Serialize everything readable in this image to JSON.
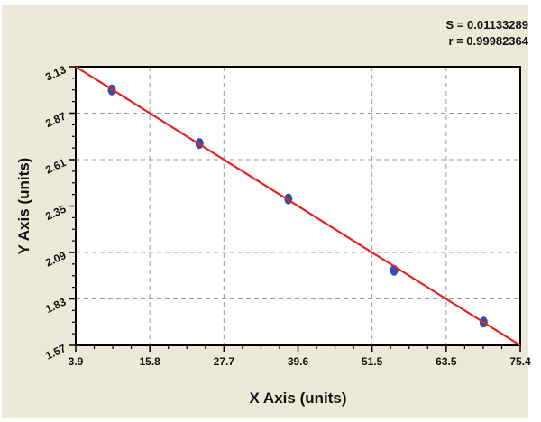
{
  "stats": {
    "s": "S = 0.01133289",
    "r": "r = 0.99982364"
  },
  "colors": {
    "background": "#ECE9D8",
    "points": "#3050B0",
    "fit_line": "#E82020",
    "grid": "#999999"
  },
  "chart_data": {
    "type": "scatter",
    "xlabel": "X Axis (units)",
    "ylabel": "Y Axis (units)",
    "xlim": [
      3.9,
      75.4
    ],
    "ylim": [
      1.57,
      3.13
    ],
    "x_ticks": [
      "3.9",
      "15.8",
      "27.7",
      "39.6",
      "51.5",
      "63.5",
      "75.4"
    ],
    "y_ticks": [
      "1.57",
      "1.83",
      "2.09",
      "2.35",
      "2.61",
      "2.87",
      "3.13"
    ],
    "grid": true,
    "points": {
      "x": [
        9.7,
        23.8,
        38.1,
        55.1,
        69.5
      ],
      "y": [
        3.0,
        2.7,
        2.39,
        1.99,
        1.7
      ]
    },
    "fit_line": {
      "x": [
        3.9,
        75.4
      ],
      "y": [
        3.13,
        1.57
      ]
    }
  }
}
